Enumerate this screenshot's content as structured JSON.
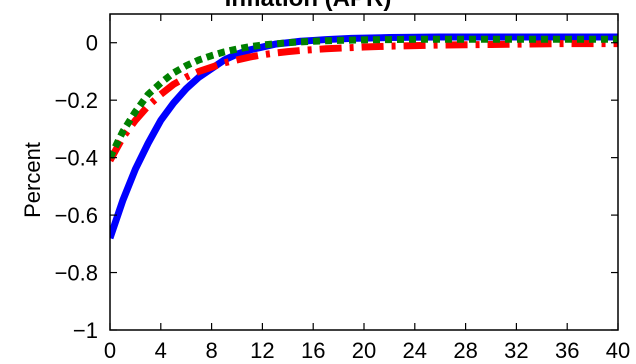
{
  "chart_data": {
    "type": "line",
    "title": "Inflation (APR)",
    "xlabel": "",
    "ylabel": "Percent",
    "xlim": [
      0,
      40
    ],
    "ylim": [
      -1,
      0.1
    ],
    "grid": false,
    "legend": "none",
    "x_ticks": [
      0,
      4,
      8,
      12,
      16,
      20,
      24,
      28,
      32,
      36,
      40
    ],
    "x_tick_labels": [
      "0",
      "4",
      "8",
      "12",
      "16",
      "20",
      "24",
      "28",
      "32",
      "36",
      "40"
    ],
    "y_ticks": [
      0,
      -0.2,
      -0.4,
      -0.6,
      -0.8,
      -1
    ],
    "y_tick_labels": [
      "0",
      "−0.2",
      "−0.4",
      "−0.6",
      "−0.8",
      "−1"
    ],
    "x": [
      0,
      1,
      2,
      3,
      4,
      5,
      6,
      7,
      8,
      9,
      10,
      11,
      12,
      13,
      14,
      15,
      16,
      17,
      18,
      19,
      20,
      22,
      24,
      26,
      28,
      30,
      32,
      34,
      36,
      38,
      40
    ],
    "series": [
      {
        "style": "solid",
        "color": "#0000ff",
        "values": [
          -0.68,
          -0.55,
          -0.44,
          -0.35,
          -0.27,
          -0.21,
          -0.16,
          -0.12,
          -0.09,
          -0.06,
          -0.04,
          -0.025,
          -0.015,
          -0.005,
          0.0,
          0.005,
          0.008,
          0.011,
          0.013,
          0.015,
          0.016,
          0.018,
          0.019,
          0.02,
          0.02,
          0.02,
          0.02,
          0.02,
          0.02,
          0.02,
          0.02
        ]
      },
      {
        "style": "dashdot",
        "color": "#ff0000",
        "values": [
          -0.41,
          -0.33,
          -0.27,
          -0.22,
          -0.18,
          -0.145,
          -0.12,
          -0.1,
          -0.085,
          -0.07,
          -0.06,
          -0.05,
          -0.042,
          -0.036,
          -0.031,
          -0.027,
          -0.024,
          -0.021,
          -0.019,
          -0.017,
          -0.015,
          -0.012,
          -0.01,
          -0.008,
          -0.007,
          -0.006,
          -0.005,
          -0.004,
          -0.003,
          -0.003,
          -0.003
        ]
      },
      {
        "style": "dotted",
        "color": "#008000",
        "values": [
          -0.4,
          -0.31,
          -0.24,
          -0.18,
          -0.14,
          -0.105,
          -0.08,
          -0.06,
          -0.045,
          -0.032,
          -0.022,
          -0.014,
          -0.008,
          -0.004,
          0.0,
          0.003,
          0.005,
          0.007,
          0.008,
          0.009,
          0.01,
          0.011,
          0.012,
          0.012,
          0.012,
          0.012,
          0.012,
          0.012,
          0.012,
          0.012,
          0.012
        ]
      }
    ]
  }
}
